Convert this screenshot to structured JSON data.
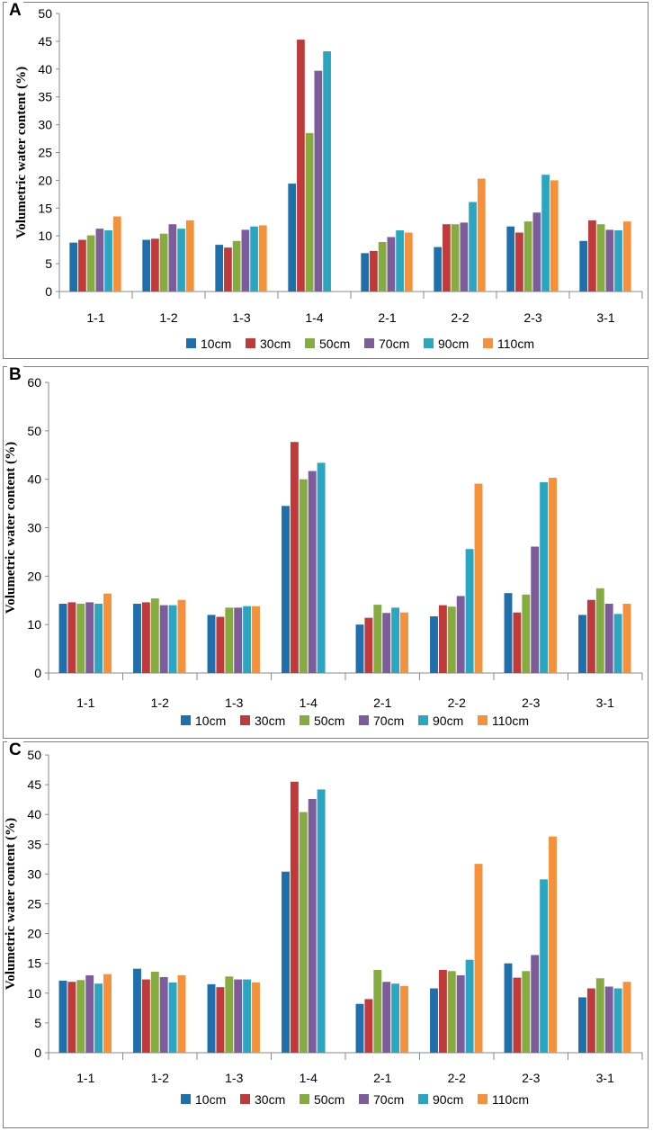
{
  "series_names": [
    "10cm",
    "30cm",
    "50cm",
    "70cm",
    "90cm",
    "110cm"
  ],
  "colors": [
    "#1f6fad",
    "#c0393b",
    "#86ac41",
    "#7d5c9b",
    "#2aa6c0",
    "#f5913a"
  ],
  "categories": [
    "1-1",
    "1-2",
    "1-3",
    "1-4",
    "2-1",
    "2-2",
    "2-3",
    "3-1"
  ],
  "chart_data": [
    {
      "type": "bar",
      "panel": "A",
      "title": "",
      "ylabel": "Volumetric water content (%)",
      "xlabel": "",
      "ylim": [
        0,
        50
      ],
      "yticks": [
        0,
        5,
        10,
        15,
        20,
        25,
        30,
        35,
        40,
        45,
        50
      ],
      "categories": [
        "1-1",
        "1-2",
        "1-3",
        "1-4",
        "2-1",
        "2-2",
        "2-3",
        "3-1"
      ],
      "series": [
        {
          "name": "10cm",
          "values": [
            8.8,
            9.3,
            8.4,
            19.4,
            6.9,
            8.0,
            11.7,
            9.1
          ]
        },
        {
          "name": "30cm",
          "values": [
            9.3,
            9.5,
            7.9,
            45.3,
            7.3,
            12.1,
            10.6,
            12.8
          ]
        },
        {
          "name": "50cm",
          "values": [
            10.1,
            10.4,
            9.1,
            28.5,
            8.9,
            12.1,
            12.6,
            12.1
          ]
        },
        {
          "name": "70cm",
          "values": [
            11.3,
            12.1,
            11.1,
            39.7,
            9.8,
            12.4,
            14.2,
            11.1
          ]
        },
        {
          "name": "90cm",
          "values": [
            11.0,
            11.3,
            11.7,
            43.2,
            11.0,
            16.1,
            21.0,
            11.0
          ]
        },
        {
          "name": "110cm",
          "values": [
            13.5,
            12.8,
            11.9,
            0,
            10.6,
            20.3,
            20.0,
            12.6
          ]
        }
      ],
      "legend": "bottom"
    },
    {
      "type": "bar",
      "panel": "B",
      "title": "",
      "ylabel": "Volumetric water content (%)",
      "xlabel": "",
      "ylim": [
        0,
        60
      ],
      "yticks": [
        0,
        10,
        20,
        30,
        40,
        50,
        60
      ],
      "categories": [
        "1-1",
        "1-2",
        "1-3",
        "1-4",
        "2-1",
        "2-2",
        "2-3",
        "3-1"
      ],
      "series": [
        {
          "name": "10cm",
          "values": [
            14.3,
            14.3,
            12.0,
            34.5,
            10.0,
            11.7,
            16.5,
            12.0
          ]
        },
        {
          "name": "30cm",
          "values": [
            14.6,
            14.6,
            11.6,
            47.7,
            11.4,
            14.0,
            12.5,
            15.1
          ]
        },
        {
          "name": "50cm",
          "values": [
            14.3,
            15.4,
            13.5,
            40.0,
            14.1,
            13.7,
            16.2,
            17.5
          ]
        },
        {
          "name": "70cm",
          "values": [
            14.6,
            14.0,
            13.5,
            41.7,
            12.4,
            15.9,
            26.1,
            14.3
          ]
        },
        {
          "name": "90cm",
          "values": [
            14.3,
            14.0,
            13.8,
            43.4,
            13.5,
            25.6,
            39.4,
            12.2
          ]
        },
        {
          "name": "110cm",
          "values": [
            16.4,
            15.1,
            13.8,
            0,
            12.5,
            39.1,
            40.3,
            14.3
          ]
        }
      ],
      "legend": "bottom"
    },
    {
      "type": "bar",
      "panel": "C",
      "title": "",
      "ylabel": "Volumetric water content (%)",
      "xlabel": "",
      "ylim": [
        0,
        50
      ],
      "yticks": [
        0,
        5,
        10,
        15,
        20,
        25,
        30,
        35,
        40,
        45,
        50
      ],
      "categories": [
        "1-1",
        "1-2",
        "1-3",
        "1-4",
        "2-1",
        "2-2",
        "2-3",
        "3-1"
      ],
      "series": [
        {
          "name": "10cm",
          "values": [
            12.1,
            14.1,
            11.5,
            30.4,
            8.2,
            10.8,
            15.0,
            9.3
          ]
        },
        {
          "name": "30cm",
          "values": [
            11.9,
            12.3,
            11.0,
            45.5,
            9.0,
            13.9,
            12.6,
            10.8
          ]
        },
        {
          "name": "50cm",
          "values": [
            12.2,
            13.6,
            12.8,
            40.4,
            13.9,
            13.7,
            13.7,
            12.5
          ]
        },
        {
          "name": "70cm",
          "values": [
            13.0,
            12.7,
            12.3,
            42.6,
            11.9,
            13.0,
            16.4,
            11.1
          ]
        },
        {
          "name": "90cm",
          "values": [
            11.6,
            11.8,
            12.3,
            44.2,
            11.6,
            15.6,
            29.1,
            10.8
          ]
        },
        {
          "name": "110cm",
          "values": [
            13.2,
            13.0,
            11.8,
            0,
            11.2,
            31.7,
            36.3,
            11.9
          ]
        }
      ],
      "legend": "bottom"
    }
  ]
}
